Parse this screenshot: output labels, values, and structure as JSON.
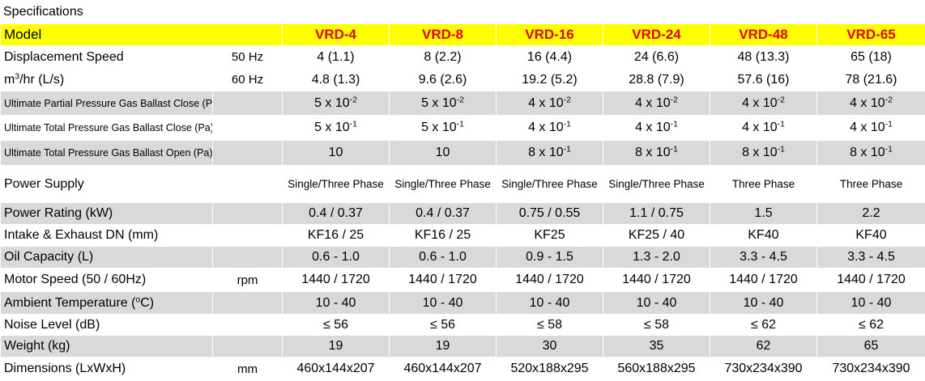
{
  "title": "Specifications",
  "table": {
    "header": {
      "label": "Model",
      "models": [
        "VRD-4",
        "VRD-8",
        "VRD-16",
        "VRD-24",
        "VRD-48",
        "VRD-65"
      ]
    },
    "rows": [
      {
        "label": "Displacement Speed",
        "unit": "50 Hz",
        "values": [
          "4 (1.1)",
          "8 (2.2)",
          "16 (4.4)",
          "24 (6.6)",
          "48 (13.3)",
          "65 (18)"
        ]
      },
      {
        "label": {
          "text": "m",
          "sup": "3",
          "after": "/hr (L/s)"
        },
        "unit": "60 Hz",
        "values": [
          "4.8 (1.3)",
          "9.6 (2.6)",
          "19.2 (5.2)",
          "28.8 (7.9)",
          "57.6 (16)",
          "78 (21.6)"
        ]
      },
      {
        "label": "Ultimate Partial Pressure Gas Ballast Close (Pa)",
        "values": [
          {
            "text": "5 x 10",
            "sup": "-2"
          },
          {
            "text": "5 x 10",
            "sup": "-2"
          },
          {
            "text": "4 x 10",
            "sup": "-2"
          },
          {
            "text": "4 x 10",
            "sup": "-2"
          },
          {
            "text": "4 x 10",
            "sup": "-2"
          },
          {
            "text": "4 x 10",
            "sup": "-2"
          }
        ]
      },
      {
        "label": "Ultimate Total Pressure Gas Ballast Close (Pa)",
        "values": [
          {
            "text": "5 x 10",
            "sup": "-1"
          },
          {
            "text": "5 x 10",
            "sup": "-1"
          },
          {
            "text": "4 x 10",
            "sup": "-1"
          },
          {
            "text": "4 x 10",
            "sup": "-1"
          },
          {
            "text": "4 x 10",
            "sup": "-1"
          },
          {
            "text": "4 x 10",
            "sup": "-1"
          }
        ]
      },
      {
        "label": "Ultimate Total Pressure Gas Ballast Open (Pa)",
        "values": [
          "10",
          "10",
          {
            "text": "8 x 10",
            "sup": "-1"
          },
          {
            "text": "8 x 10",
            "sup": "-1"
          },
          {
            "text": "8 x 10",
            "sup": "-1"
          },
          {
            "text": "8 x 10",
            "sup": "-1"
          }
        ]
      },
      {
        "label": "Power Supply",
        "values": [
          "Single/Three Phase",
          "Single/Three Phase",
          "Single/Three Phase",
          "Single/Three Phase",
          "Three Phase",
          "Three Phase"
        ]
      },
      {
        "label": "Power Rating  (kW)",
        "values": [
          "0.4 / 0.37",
          "0.4 / 0.37",
          "0.75 / 0.55",
          "1.1 / 0.75",
          "1.5",
          "2.2"
        ]
      },
      {
        "label": "Intake & Exhaust DN (mm)",
        "values": [
          "KF16 / 25",
          "KF16 / 25",
          "KF25",
          "KF25 / 40",
          "KF40",
          "KF40"
        ]
      },
      {
        "label": "Oil Capacity (L)",
        "values": [
          "0.6 - 1.0",
          "0.6 - 1.0",
          "0.9 - 1.5",
          "1.3 - 2.0",
          "3.3 - 4.5",
          "3.3 - 4.5"
        ]
      },
      {
        "label": "Motor Speed (50 / 60Hz)",
        "unit": "rpm",
        "values": [
          "1440 / 1720",
          "1440 / 1720",
          "1440 / 1720",
          "1440 / 1720",
          "1440 / 1720",
          "1440 / 1720"
        ]
      },
      {
        "label": {
          "text": "Ambient Temperature (",
          "sup": "o",
          "after": "C)"
        },
        "values": [
          "10 - 40",
          "10 - 40",
          "10 - 40",
          "10 - 40",
          "10 - 40",
          "10 - 40"
        ]
      },
      {
        "label": "Noise Level (dB)",
        "values": [
          "≤ 56",
          "≤ 56",
          "≤ 58",
          "≤ 58",
          "≤ 62",
          "≤ 62"
        ]
      },
      {
        "label": "Weight (kg)",
        "values": [
          19,
          19,
          30,
          35,
          62,
          65
        ]
      },
      {
        "label": "Dimensions (LxWxH)",
        "unit": "mm",
        "values": [
          "460x144x207",
          "460x144x207",
          "520x188x295",
          "560x188x295",
          "730x234x390",
          "730x234x390"
        ]
      }
    ]
  }
}
